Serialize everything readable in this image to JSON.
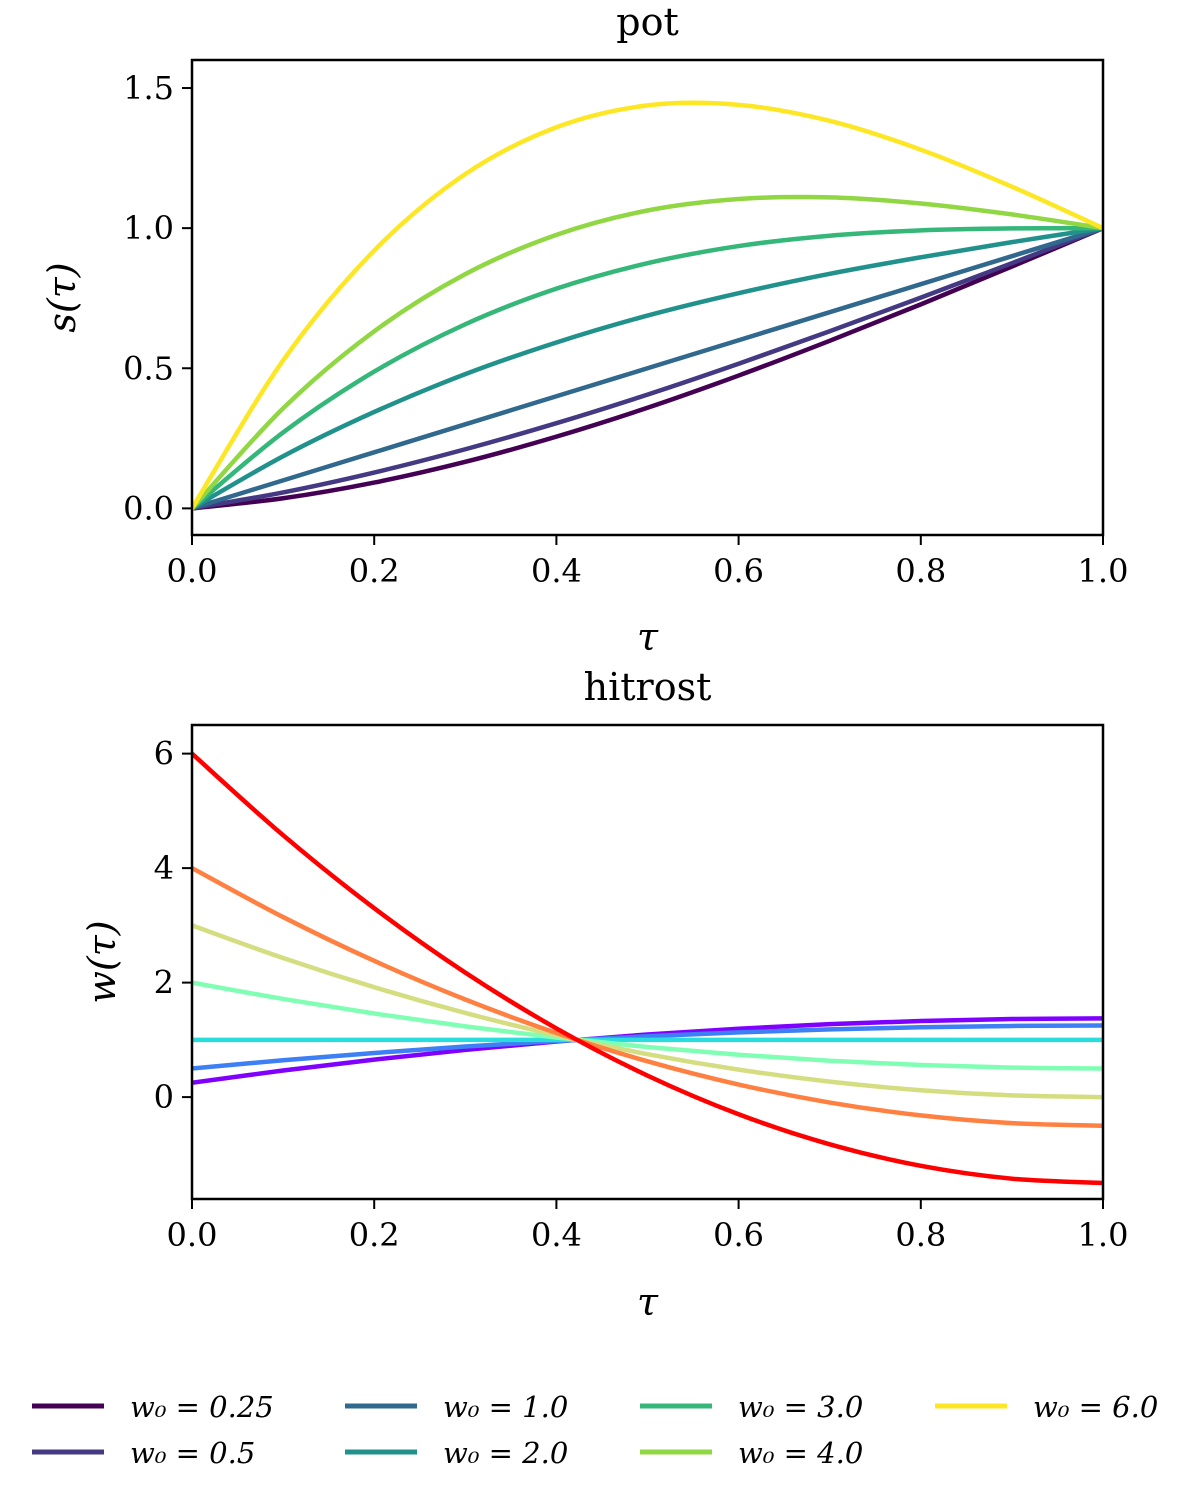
{
  "chart_data": [
    {
      "type": "line",
      "title": "pot",
      "xlabel": "τ",
      "ylabel": "s(τ)",
      "xlim": [
        0,
        1
      ],
      "ylim": [
        -0.095,
        1.6
      ],
      "xticks": [
        "0.0",
        "0.2",
        "0.4",
        "0.6",
        "0.8",
        "1.0"
      ],
      "yticks": [
        "0.0",
        "0.5",
        "1.0",
        "1.5"
      ],
      "x": [
        0,
        0.1,
        0.2,
        0.3,
        0.4,
        0.5,
        0.6,
        0.7,
        0.8,
        0.9,
        1.0
      ],
      "series": [
        {
          "name": "w0 = 0.25",
          "color": "#440154",
          "values": [
            0,
            0.036,
            0.092,
            0.166,
            0.256,
            0.359,
            0.474,
            0.598,
            0.728,
            0.863,
            1
          ]
        },
        {
          "name": "w0 = 0.5",
          "color": "#443983",
          "values": [
            0,
            0.057,
            0.128,
            0.211,
            0.304,
            0.406,
            0.516,
            0.632,
            0.752,
            0.875,
            1
          ]
        },
        {
          "name": "w0 = 1.0",
          "color": "#31688e",
          "values": [
            0,
            0.1,
            0.2,
            0.3,
            0.4,
            0.5,
            0.6,
            0.7,
            0.8,
            0.9,
            1
          ]
        },
        {
          "name": "w0 = 2.0",
          "color": "#21918c",
          "values": [
            0,
            0.186,
            0.344,
            0.479,
            0.592,
            0.688,
            0.768,
            0.837,
            0.896,
            0.95,
            1
          ]
        },
        {
          "name": "w0 = 3.0",
          "color": "#35b779",
          "values": [
            0,
            0.271,
            0.488,
            0.657,
            0.784,
            0.875,
            0.936,
            0.973,
            0.992,
            0.999,
            1
          ]
        },
        {
          "name": "w0 = 4.0",
          "color": "#90d743",
          "values": [
            0,
            0.357,
            0.632,
            0.836,
            0.976,
            1.063,
            1.104,
            1.11,
            1.088,
            1.049,
            1
          ]
        },
        {
          "name": "w0 = 6.0",
          "color": "#fde725",
          "values": [
            0,
            0.528,
            0.92,
            1.193,
            1.36,
            1.438,
            1.44,
            1.383,
            1.28,
            1.148,
            1
          ]
        }
      ]
    },
    {
      "type": "line",
      "title": "hitrost",
      "xlabel": "τ",
      "ylabel": "w(τ)",
      "xlim": [
        0,
        1
      ],
      "ylim": [
        -1.78,
        6.5
      ],
      "xticks": [
        "0.0",
        "0.2",
        "0.4",
        "0.6",
        "0.8",
        "1.0"
      ],
      "yticks": [
        "0",
        "2",
        "4",
        "6"
      ],
      "x": [
        0,
        0.1,
        0.2,
        0.3,
        0.4,
        0.5,
        0.6,
        0.7,
        0.8,
        0.9,
        1.0
      ],
      "series": [
        {
          "name": "w0 = 0.25",
          "color": "#8000ff",
          "values": [
            0.25,
            0.464,
            0.655,
            0.824,
            0.97,
            1.094,
            1.195,
            1.274,
            1.33,
            1.364,
            1.375
          ]
        },
        {
          "name": "w0 = 0.5",
          "color": "#3d7ff5",
          "values": [
            0.5,
            0.643,
            0.77,
            0.883,
            0.98,
            1.063,
            1.13,
            1.183,
            1.22,
            1.243,
            1.25
          ]
        },
        {
          "name": "w0 = 1.0",
          "color": "#2adddd",
          "values": [
            1,
            1,
            1,
            1,
            1,
            1,
            1,
            1,
            1,
            1,
            1
          ]
        },
        {
          "name": "w0 = 2.0",
          "color": "#80ffb4",
          "values": [
            2,
            1.715,
            1.46,
            1.235,
            1.04,
            0.875,
            0.74,
            0.635,
            0.56,
            0.515,
            0.5
          ]
        },
        {
          "name": "w0 = 3.0",
          "color": "#d4dd80",
          "values": [
            3,
            2.43,
            1.92,
            1.47,
            1.08,
            0.75,
            0.48,
            0.27,
            0.12,
            0.03,
            0
          ]
        },
        {
          "name": "w0 = 4.0",
          "color": "#ff8040",
          "values": [
            4,
            3.145,
            2.38,
            1.705,
            1.12,
            0.625,
            0.22,
            -0.095,
            -0.32,
            -0.455,
            -0.5
          ]
        },
        {
          "name": "w0 = 6.0",
          "color": "#ff0000",
          "values": [
            6,
            4.575,
            3.3,
            2.175,
            1.2,
            0.375,
            -0.3,
            -0.825,
            -1.2,
            -1.425,
            -1.5
          ]
        }
      ]
    }
  ],
  "legend": {
    "placement": "bottom",
    "entries": [
      {
        "label": "w₀ = 0.25",
        "color": "#440154"
      },
      {
        "label": "w₀ = 0.5",
        "color": "#443983"
      },
      {
        "label": "w₀ = 1.0",
        "color": "#31688e"
      },
      {
        "label": "w₀ = 2.0",
        "color": "#21918c"
      },
      {
        "label": "w₀ = 3.0",
        "color": "#35b779"
      },
      {
        "label": "w₀ = 4.0",
        "color": "#90d743"
      },
      {
        "label": "w₀ = 6.0",
        "color": "#fde725"
      }
    ]
  }
}
